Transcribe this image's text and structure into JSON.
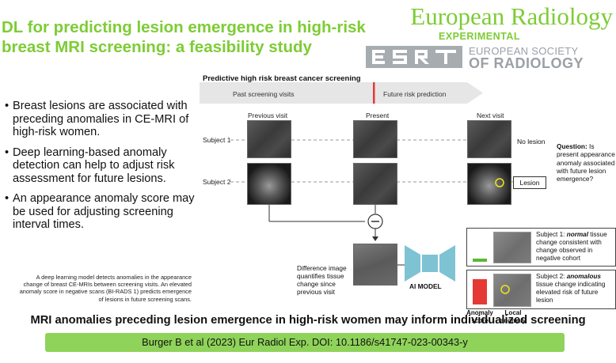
{
  "header": {
    "title": "DL for predicting lesion emergence in high-risk breast MRI screening: a feasibility study",
    "journal_name": "European Radiology",
    "journal_sub": "EXPERIMENTAL",
    "society_line1": "EUROPEAN SOCIETY",
    "society_line2": "OF RADIOLOGY",
    "society_logo": "ESR"
  },
  "bullets": [
    "Breast lesions are associated with preceding anomalies in CE-MRI of high-risk women.",
    "Deep learning-based anomaly detection can help to adjust risk assessment for future lesions.",
    "An appearance anomaly score may be used for adjusting screening interval times."
  ],
  "note": "A deep learning model detects anomalies in the appearance change of breast CE-MRIs between screening visits. An elevated anomaly score in negative scans (BI-RADS 1) predicts emergence of lesions in future screening scans.",
  "diagram": {
    "title": "Predictive high risk breast cancer screening",
    "band_past": "Past screening visits",
    "band_future": "Future risk prediction",
    "col_previous": "Previous visit",
    "col_present": "Present",
    "col_next": "Next visit",
    "row_subject1": "Subject 1",
    "row_subject2": "Subject 2",
    "no_lesion": "No lesion",
    "lesion": "Lesion",
    "question_bold": "Question:",
    "question_text": " Is present appearance anomaly associated with future lesion emergence?",
    "diff_label": "Difference image quantifies tissue change since previous visit",
    "ai_model": "AI MODEL",
    "subj1_prefix": "Subject 1: ",
    "subj1_em": "normal",
    "subj1_rest": " tissue change consistent with change observed in negative cohort",
    "subj2_prefix": "Subject 2: ",
    "subj2_em": "anomalous",
    "subj2_rest": " tissue change indicating elevated risk of future lesion",
    "anomaly_score": "Anomaly score",
    "local_anomaly": "Local anomaly"
  },
  "anomaly_scores": {
    "subject1": 0.12,
    "subject2": 0.88
  },
  "footer": {
    "headline": "MRI anomalies preceding lesion emergence in high-risk women may inform individualized screening",
    "citation": "Burger B et al (2023) Eur Radiol Exp. DOI: 10.1186/s41747-023-00343-y"
  },
  "colors": {
    "accent_green": "#7dcc35",
    "citation_bg": "#8fd35a",
    "marker_red": "#e53935",
    "score_green": "#59b932",
    "highlight_yellow": "#f2e41c",
    "ai_model_blue": "#7ec3d4"
  }
}
